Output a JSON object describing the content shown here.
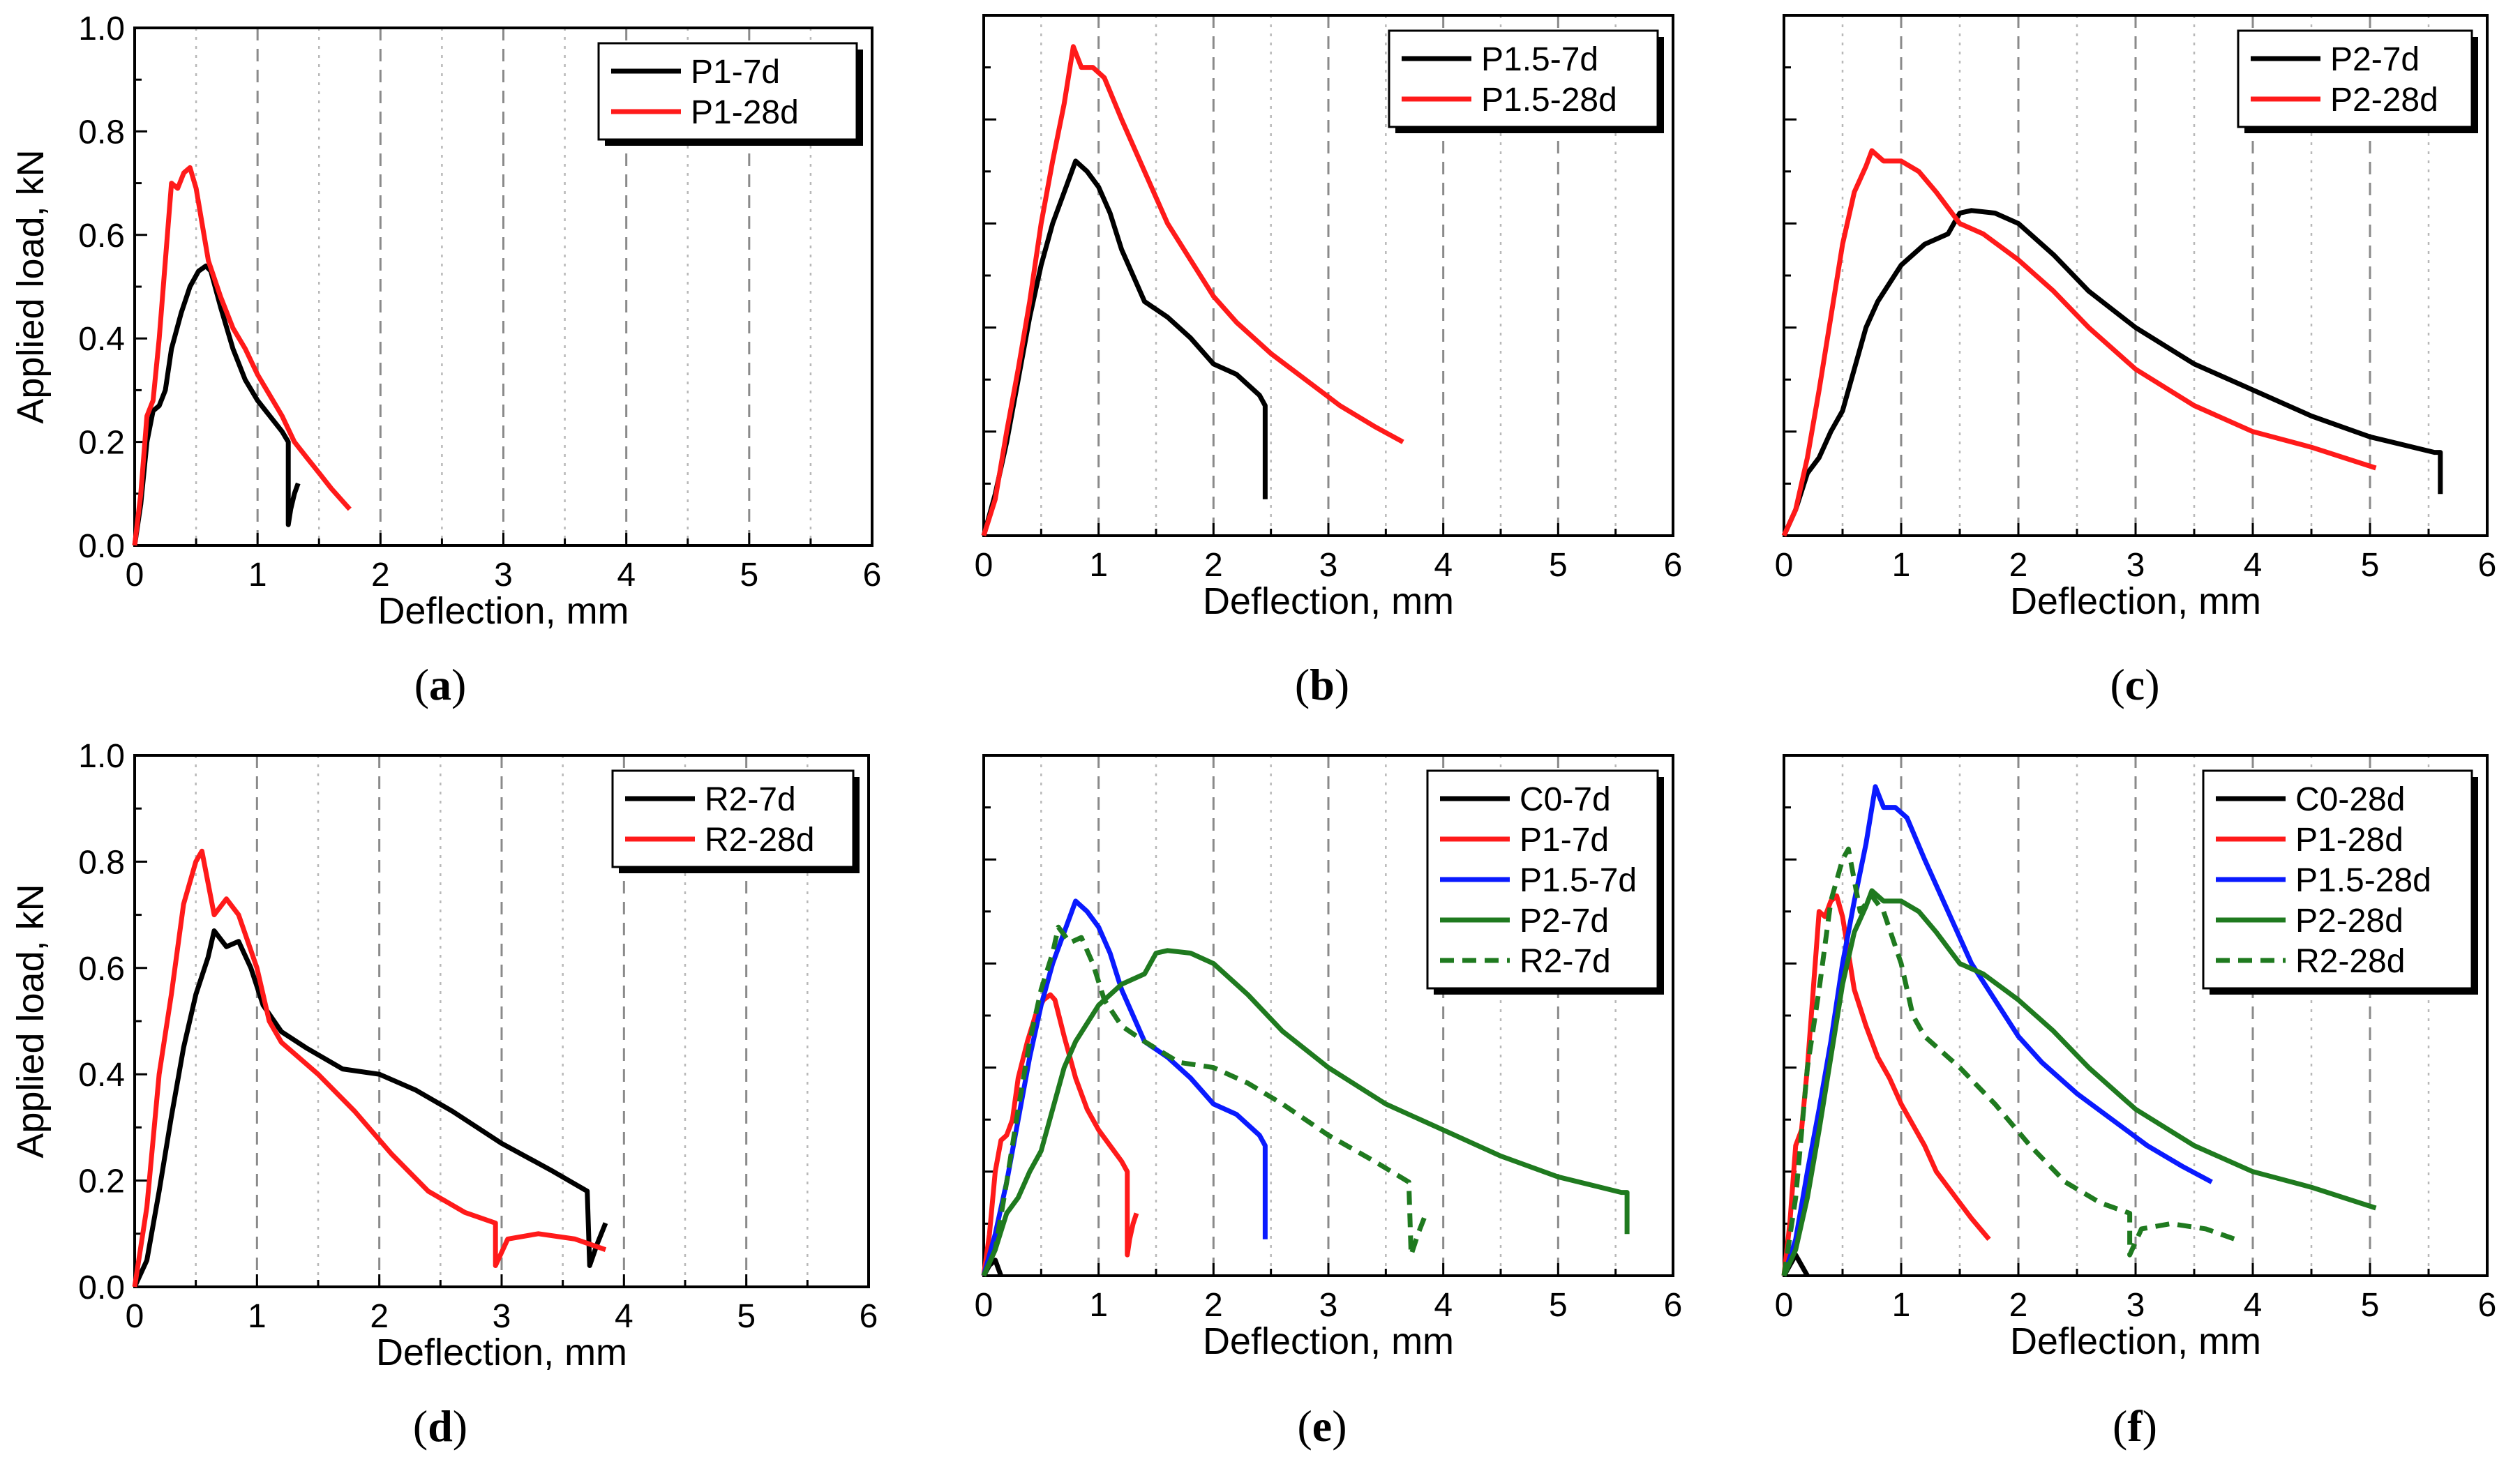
{
  "figure": {
    "panel_labels": [
      "(a)",
      "(b)",
      "(c)",
      "(d)",
      "(e)",
      "(f)"
    ]
  },
  "colors": {
    "black": "#000000",
    "red": "#ff1a1a",
    "blue": "#0a1aff",
    "green": "#1f7a1f",
    "grid_dash": "#8a8a8a",
    "grid_dot": "#b8b8b8"
  },
  "chart_data": [
    {
      "id": "a",
      "type": "line",
      "title": "",
      "xlabel": "Deflection, mm",
      "ylabel": "Applied load, kN",
      "xlim": [
        0,
        6
      ],
      "ylim": [
        0,
        1.0
      ],
      "xticks": [
        0,
        1,
        2,
        3,
        4,
        5,
        6
      ],
      "yticks": [
        0.0,
        0.2,
        0.4,
        0.6,
        0.8,
        1.0
      ],
      "ytick_labels_shown": true,
      "legend_position": "top-right",
      "series": [
        {
          "name": "P1-7d",
          "color": "#000000",
          "style": "solid",
          "x": [
            0,
            0.05,
            0.1,
            0.15,
            0.2,
            0.25,
            0.3,
            0.38,
            0.45,
            0.52,
            0.58,
            0.62,
            0.7,
            0.8,
            0.9,
            1.0,
            1.1,
            1.2,
            1.25,
            1.25,
            1.27,
            1.3,
            1.33
          ],
          "y": [
            0,
            0.08,
            0.2,
            0.26,
            0.27,
            0.3,
            0.38,
            0.45,
            0.5,
            0.53,
            0.54,
            0.53,
            0.46,
            0.38,
            0.32,
            0.28,
            0.25,
            0.22,
            0.2,
            0.04,
            0.07,
            0.1,
            0.12
          ]
        },
        {
          "name": "P1-28d",
          "color": "#ff1a1a",
          "style": "solid",
          "x": [
            0,
            0.05,
            0.1,
            0.15,
            0.2,
            0.25,
            0.3,
            0.35,
            0.4,
            0.45,
            0.5,
            0.55,
            0.6,
            0.7,
            0.8,
            0.9,
            1.0,
            1.1,
            1.2,
            1.3,
            1.4,
            1.5,
            1.6,
            1.75
          ],
          "y": [
            0,
            0.1,
            0.25,
            0.28,
            0.4,
            0.55,
            0.7,
            0.69,
            0.72,
            0.73,
            0.69,
            0.62,
            0.55,
            0.48,
            0.42,
            0.38,
            0.33,
            0.29,
            0.25,
            0.2,
            0.17,
            0.14,
            0.11,
            0.07
          ]
        }
      ]
    },
    {
      "id": "b",
      "type": "line",
      "title": "",
      "xlabel": "Deflection, mm",
      "ylabel": "",
      "xlim": [
        0,
        6
      ],
      "ylim": [
        0,
        1.0
      ],
      "xticks": [
        0,
        1,
        2,
        3,
        4,
        5,
        6
      ],
      "yticks": [
        0.0,
        0.2,
        0.4,
        0.6,
        0.8,
        1.0
      ],
      "ytick_labels_shown": false,
      "legend_position": "top-right",
      "series": [
        {
          "name": "P1.5-7d",
          "color": "#000000",
          "style": "solid",
          "x": [
            0,
            0.1,
            0.2,
            0.3,
            0.4,
            0.5,
            0.6,
            0.7,
            0.8,
            0.9,
            1.0,
            1.1,
            1.2,
            1.3,
            1.4,
            1.6,
            1.8,
            2.0,
            2.2,
            2.4,
            2.45,
            2.45
          ],
          "y": [
            0,
            0.08,
            0.18,
            0.3,
            0.42,
            0.52,
            0.6,
            0.66,
            0.72,
            0.7,
            0.67,
            0.62,
            0.55,
            0.5,
            0.45,
            0.42,
            0.38,
            0.33,
            0.31,
            0.27,
            0.25,
            0.07
          ]
        },
        {
          "name": "P1.5-28d",
          "color": "#ff1a1a",
          "style": "solid",
          "x": [
            0,
            0.1,
            0.2,
            0.3,
            0.4,
            0.5,
            0.6,
            0.7,
            0.78,
            0.85,
            0.95,
            1.05,
            1.2,
            1.4,
            1.6,
            1.8,
            2.0,
            2.2,
            2.5,
            2.8,
            3.1,
            3.4,
            3.65
          ],
          "y": [
            0,
            0.07,
            0.2,
            0.32,
            0.45,
            0.6,
            0.72,
            0.83,
            0.94,
            0.9,
            0.9,
            0.88,
            0.8,
            0.7,
            0.6,
            0.53,
            0.46,
            0.41,
            0.35,
            0.3,
            0.25,
            0.21,
            0.18
          ]
        }
      ]
    },
    {
      "id": "c",
      "type": "line",
      "title": "",
      "xlabel": "Deflection, mm",
      "ylabel": "",
      "xlim": [
        0,
        6
      ],
      "ylim": [
        0,
        1.0
      ],
      "xticks": [
        0,
        1,
        2,
        3,
        4,
        5,
        6
      ],
      "yticks": [
        0.0,
        0.2,
        0.4,
        0.6,
        0.8,
        1.0
      ],
      "ytick_labels_shown": false,
      "legend_position": "top-right",
      "series": [
        {
          "name": "P2-7d",
          "color": "#000000",
          "style": "solid",
          "x": [
            0,
            0.1,
            0.2,
            0.3,
            0.4,
            0.5,
            0.6,
            0.7,
            0.8,
            1.0,
            1.2,
            1.4,
            1.5,
            1.6,
            1.8,
            2.0,
            2.3,
            2.6,
            3.0,
            3.5,
            4.0,
            4.5,
            5.0,
            5.55,
            5.6,
            5.6
          ],
          "y": [
            0,
            0.05,
            0.12,
            0.15,
            0.2,
            0.24,
            0.32,
            0.4,
            0.45,
            0.52,
            0.56,
            0.58,
            0.62,
            0.625,
            0.62,
            0.6,
            0.54,
            0.47,
            0.4,
            0.33,
            0.28,
            0.23,
            0.19,
            0.16,
            0.16,
            0.08
          ]
        },
        {
          "name": "P2-28d",
          "color": "#ff1a1a",
          "style": "solid",
          "x": [
            0,
            0.1,
            0.2,
            0.3,
            0.4,
            0.5,
            0.6,
            0.7,
            0.75,
            0.85,
            1.0,
            1.15,
            1.3,
            1.5,
            1.7,
            2.0,
            2.3,
            2.6,
            3.0,
            3.5,
            4.0,
            4.5,
            5.05
          ],
          "y": [
            0,
            0.05,
            0.15,
            0.28,
            0.42,
            0.56,
            0.66,
            0.71,
            0.74,
            0.72,
            0.72,
            0.7,
            0.66,
            0.6,
            0.58,
            0.53,
            0.47,
            0.4,
            0.32,
            0.25,
            0.2,
            0.17,
            0.13
          ]
        }
      ]
    },
    {
      "id": "d",
      "type": "line",
      "title": "",
      "xlabel": "Deflection, mm",
      "ylabel": "Applied load, kN",
      "xlim": [
        0,
        6
      ],
      "ylim": [
        0,
        1.0
      ],
      "xticks": [
        0,
        1,
        2,
        3,
        4,
        5,
        6
      ],
      "yticks": [
        0.0,
        0.2,
        0.4,
        0.6,
        0.8,
        1.0
      ],
      "ytick_labels_shown": true,
      "legend_position": "top-right",
      "series": [
        {
          "name": "R2-7d",
          "color": "#000000",
          "style": "solid",
          "x": [
            0,
            0.1,
            0.2,
            0.3,
            0.4,
            0.5,
            0.6,
            0.65,
            0.75,
            0.85,
            0.95,
            1.05,
            1.2,
            1.4,
            1.7,
            2.0,
            2.3,
            2.6,
            3.0,
            3.4,
            3.7,
            3.72,
            3.78,
            3.85
          ],
          "y": [
            0,
            0.05,
            0.18,
            0.32,
            0.45,
            0.55,
            0.62,
            0.67,
            0.64,
            0.65,
            0.6,
            0.53,
            0.48,
            0.45,
            0.41,
            0.4,
            0.37,
            0.33,
            0.27,
            0.22,
            0.18,
            0.04,
            0.08,
            0.12
          ]
        },
        {
          "name": "R2-28d",
          "color": "#ff1a1a",
          "style": "solid",
          "x": [
            0,
            0.1,
            0.2,
            0.3,
            0.4,
            0.5,
            0.55,
            0.65,
            0.75,
            0.85,
            1.0,
            1.1,
            1.2,
            1.5,
            1.8,
            2.1,
            2.4,
            2.7,
            2.95,
            2.95,
            3.05,
            3.3,
            3.6,
            3.85
          ],
          "y": [
            0,
            0.15,
            0.4,
            0.55,
            0.72,
            0.8,
            0.82,
            0.7,
            0.73,
            0.7,
            0.6,
            0.5,
            0.46,
            0.4,
            0.33,
            0.25,
            0.18,
            0.14,
            0.12,
            0.04,
            0.09,
            0.1,
            0.09,
            0.07
          ]
        }
      ]
    },
    {
      "id": "e",
      "type": "line",
      "title": "",
      "xlabel": "Deflection, mm",
      "ylabel": "",
      "xlim": [
        0,
        6
      ],
      "ylim": [
        0,
        1.0
      ],
      "xticks": [
        0,
        1,
        2,
        3,
        4,
        5,
        6
      ],
      "yticks": [
        0.0,
        0.2,
        0.4,
        0.6,
        0.8,
        1.0
      ],
      "ytick_labels_shown": false,
      "legend_position": "top-right",
      "series": [
        {
          "name": "C0-7d",
          "color": "#000000",
          "style": "solid",
          "x": [
            0,
            0.05,
            0.1,
            0.15
          ],
          "y": [
            0,
            0.02,
            0.03,
            0
          ]
        },
        {
          "name": "P1-7d",
          "color": "#ff1a1a",
          "style": "solid",
          "x": [
            0,
            0.05,
            0.1,
            0.15,
            0.2,
            0.25,
            0.3,
            0.38,
            0.45,
            0.52,
            0.58,
            0.62,
            0.7,
            0.8,
            0.9,
            1.0,
            1.1,
            1.2,
            1.25,
            1.25,
            1.27,
            1.3,
            1.33
          ],
          "y": [
            0,
            0.08,
            0.2,
            0.26,
            0.27,
            0.3,
            0.38,
            0.45,
            0.5,
            0.53,
            0.54,
            0.53,
            0.46,
            0.38,
            0.32,
            0.28,
            0.25,
            0.22,
            0.2,
            0.04,
            0.07,
            0.1,
            0.12
          ]
        },
        {
          "name": "P1.5-7d",
          "color": "#0a1aff",
          "style": "solid",
          "x": [
            0,
            0.1,
            0.2,
            0.3,
            0.4,
            0.5,
            0.6,
            0.7,
            0.8,
            0.9,
            1.0,
            1.1,
            1.2,
            1.3,
            1.4,
            1.6,
            1.8,
            2.0,
            2.2,
            2.4,
            2.45,
            2.45
          ],
          "y": [
            0,
            0.08,
            0.18,
            0.3,
            0.42,
            0.52,
            0.6,
            0.66,
            0.72,
            0.7,
            0.67,
            0.62,
            0.55,
            0.5,
            0.45,
            0.42,
            0.38,
            0.33,
            0.31,
            0.27,
            0.25,
            0.07
          ]
        },
        {
          "name": "P2-7d",
          "color": "#1f7a1f",
          "style": "solid",
          "x": [
            0,
            0.1,
            0.2,
            0.3,
            0.4,
            0.5,
            0.6,
            0.7,
            0.8,
            1.0,
            1.2,
            1.4,
            1.5,
            1.6,
            1.8,
            2.0,
            2.3,
            2.6,
            3.0,
            3.5,
            4.0,
            4.5,
            5.0,
            5.55,
            5.6,
            5.6
          ],
          "y": [
            0,
            0.05,
            0.12,
            0.15,
            0.2,
            0.24,
            0.32,
            0.4,
            0.45,
            0.52,
            0.56,
            0.58,
            0.62,
            0.625,
            0.62,
            0.6,
            0.54,
            0.47,
            0.4,
            0.33,
            0.28,
            0.23,
            0.19,
            0.16,
            0.16,
            0.08
          ]
        },
        {
          "name": "R2-7d",
          "color": "#1f7a1f",
          "style": "dashed",
          "x": [
            0,
            0.1,
            0.2,
            0.3,
            0.4,
            0.5,
            0.6,
            0.65,
            0.75,
            0.85,
            0.95,
            1.05,
            1.2,
            1.4,
            1.7,
            2.0,
            2.3,
            2.6,
            3.0,
            3.4,
            3.7,
            3.72,
            3.78,
            3.85
          ],
          "y": [
            0,
            0.05,
            0.18,
            0.32,
            0.45,
            0.55,
            0.62,
            0.67,
            0.64,
            0.65,
            0.6,
            0.53,
            0.48,
            0.45,
            0.41,
            0.4,
            0.37,
            0.33,
            0.27,
            0.22,
            0.18,
            0.04,
            0.08,
            0.12
          ]
        }
      ]
    },
    {
      "id": "f",
      "type": "line",
      "title": "",
      "xlabel": "Deflection, mm",
      "ylabel": "",
      "xlim": [
        0,
        6
      ],
      "ylim": [
        0,
        1.0
      ],
      "xticks": [
        0,
        1,
        2,
        3,
        4,
        5,
        6
      ],
      "yticks": [
        0.0,
        0.2,
        0.4,
        0.6,
        0.8,
        1.0
      ],
      "ytick_labels_shown": false,
      "legend_position": "top-right",
      "series": [
        {
          "name": "C0-28d",
          "color": "#000000",
          "style": "solid",
          "x": [
            0,
            0.05,
            0.1,
            0.15,
            0.2
          ],
          "y": [
            0,
            0.02,
            0.04,
            0.02,
            0
          ]
        },
        {
          "name": "P1-28d",
          "color": "#ff1a1a",
          "style": "solid",
          "x": [
            0,
            0.05,
            0.1,
            0.15,
            0.2,
            0.25,
            0.3,
            0.35,
            0.4,
            0.45,
            0.5,
            0.55,
            0.6,
            0.7,
            0.8,
            0.9,
            1.0,
            1.1,
            1.2,
            1.3,
            1.4,
            1.5,
            1.6,
            1.75
          ],
          "y": [
            0,
            0.1,
            0.25,
            0.28,
            0.4,
            0.55,
            0.7,
            0.69,
            0.72,
            0.73,
            0.69,
            0.62,
            0.55,
            0.48,
            0.42,
            0.38,
            0.33,
            0.29,
            0.25,
            0.2,
            0.17,
            0.14,
            0.11,
            0.07
          ]
        },
        {
          "name": "P1.5-28d",
          "color": "#0a1aff",
          "style": "solid",
          "x": [
            0,
            0.1,
            0.2,
            0.3,
            0.4,
            0.5,
            0.6,
            0.7,
            0.78,
            0.85,
            0.95,
            1.05,
            1.2,
            1.4,
            1.6,
            1.8,
            2.0,
            2.2,
            2.5,
            2.8,
            3.1,
            3.4,
            3.65
          ],
          "y": [
            0,
            0.07,
            0.2,
            0.32,
            0.45,
            0.6,
            0.72,
            0.83,
            0.94,
            0.9,
            0.9,
            0.88,
            0.8,
            0.7,
            0.6,
            0.53,
            0.46,
            0.41,
            0.35,
            0.3,
            0.25,
            0.21,
            0.18
          ]
        },
        {
          "name": "P2-28d",
          "color": "#1f7a1f",
          "style": "solid",
          "x": [
            0,
            0.1,
            0.2,
            0.3,
            0.4,
            0.5,
            0.6,
            0.7,
            0.75,
            0.85,
            1.0,
            1.15,
            1.3,
            1.5,
            1.7,
            2.0,
            2.3,
            2.6,
            3.0,
            3.5,
            4.0,
            4.5,
            5.05
          ],
          "y": [
            0,
            0.05,
            0.15,
            0.28,
            0.42,
            0.56,
            0.66,
            0.71,
            0.74,
            0.72,
            0.72,
            0.7,
            0.66,
            0.6,
            0.58,
            0.53,
            0.47,
            0.4,
            0.32,
            0.25,
            0.2,
            0.17,
            0.13
          ]
        },
        {
          "name": "R2-28d",
          "color": "#1f7a1f",
          "style": "dashed",
          "x": [
            0,
            0.1,
            0.2,
            0.3,
            0.4,
            0.5,
            0.55,
            0.65,
            0.75,
            0.85,
            1.0,
            1.1,
            1.2,
            1.5,
            1.8,
            2.1,
            2.4,
            2.7,
            2.95,
            2.95,
            3.05,
            3.3,
            3.6,
            3.85
          ],
          "y": [
            0,
            0.15,
            0.4,
            0.55,
            0.72,
            0.8,
            0.82,
            0.7,
            0.73,
            0.7,
            0.6,
            0.5,
            0.46,
            0.4,
            0.33,
            0.25,
            0.18,
            0.14,
            0.12,
            0.04,
            0.09,
            0.1,
            0.09,
            0.07
          ]
        }
      ]
    }
  ]
}
